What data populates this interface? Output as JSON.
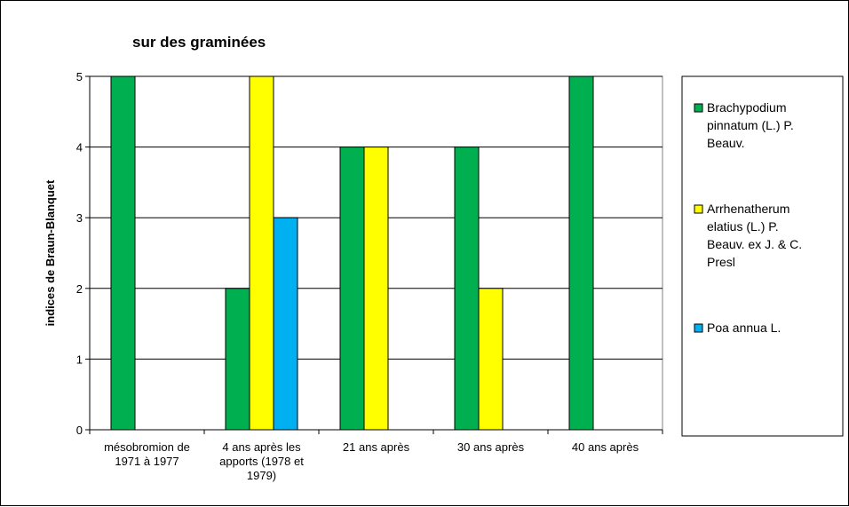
{
  "chart_data": {
    "type": "bar",
    "title": "sur des graminées",
    "xlabel": "",
    "ylabel": "indices de Braun-Blanquet",
    "ylim": [
      0,
      5
    ],
    "yticks": [
      0,
      1,
      2,
      3,
      4,
      5
    ],
    "grid": true,
    "legend_position": "right",
    "categories": [
      [
        "mésobromion de",
        "1971 à 1977"
      ],
      [
        "4 ans après les",
        "apports (1978 et",
        "1979)"
      ],
      [
        "21 ans après"
      ],
      [
        "30 ans après"
      ],
      [
        "40 ans après"
      ]
    ],
    "series": [
      {
        "name": [
          "Brachypodium",
          "pinnatum (L.) P.",
          "Beauv."
        ],
        "color": "#00b050",
        "values": [
          5,
          2,
          4,
          4,
          5
        ]
      },
      {
        "name": [
          "Arrhenatherum",
          "elatius (L.) P.",
          "Beauv. ex J. & C.",
          "Presl"
        ],
        "color": "#ffff00",
        "values": [
          null,
          5,
          4,
          2,
          null
        ]
      },
      {
        "name": [
          "Poa annua L."
        ],
        "color": "#00b0f0",
        "values": [
          null,
          3,
          null,
          null,
          null
        ]
      }
    ]
  }
}
